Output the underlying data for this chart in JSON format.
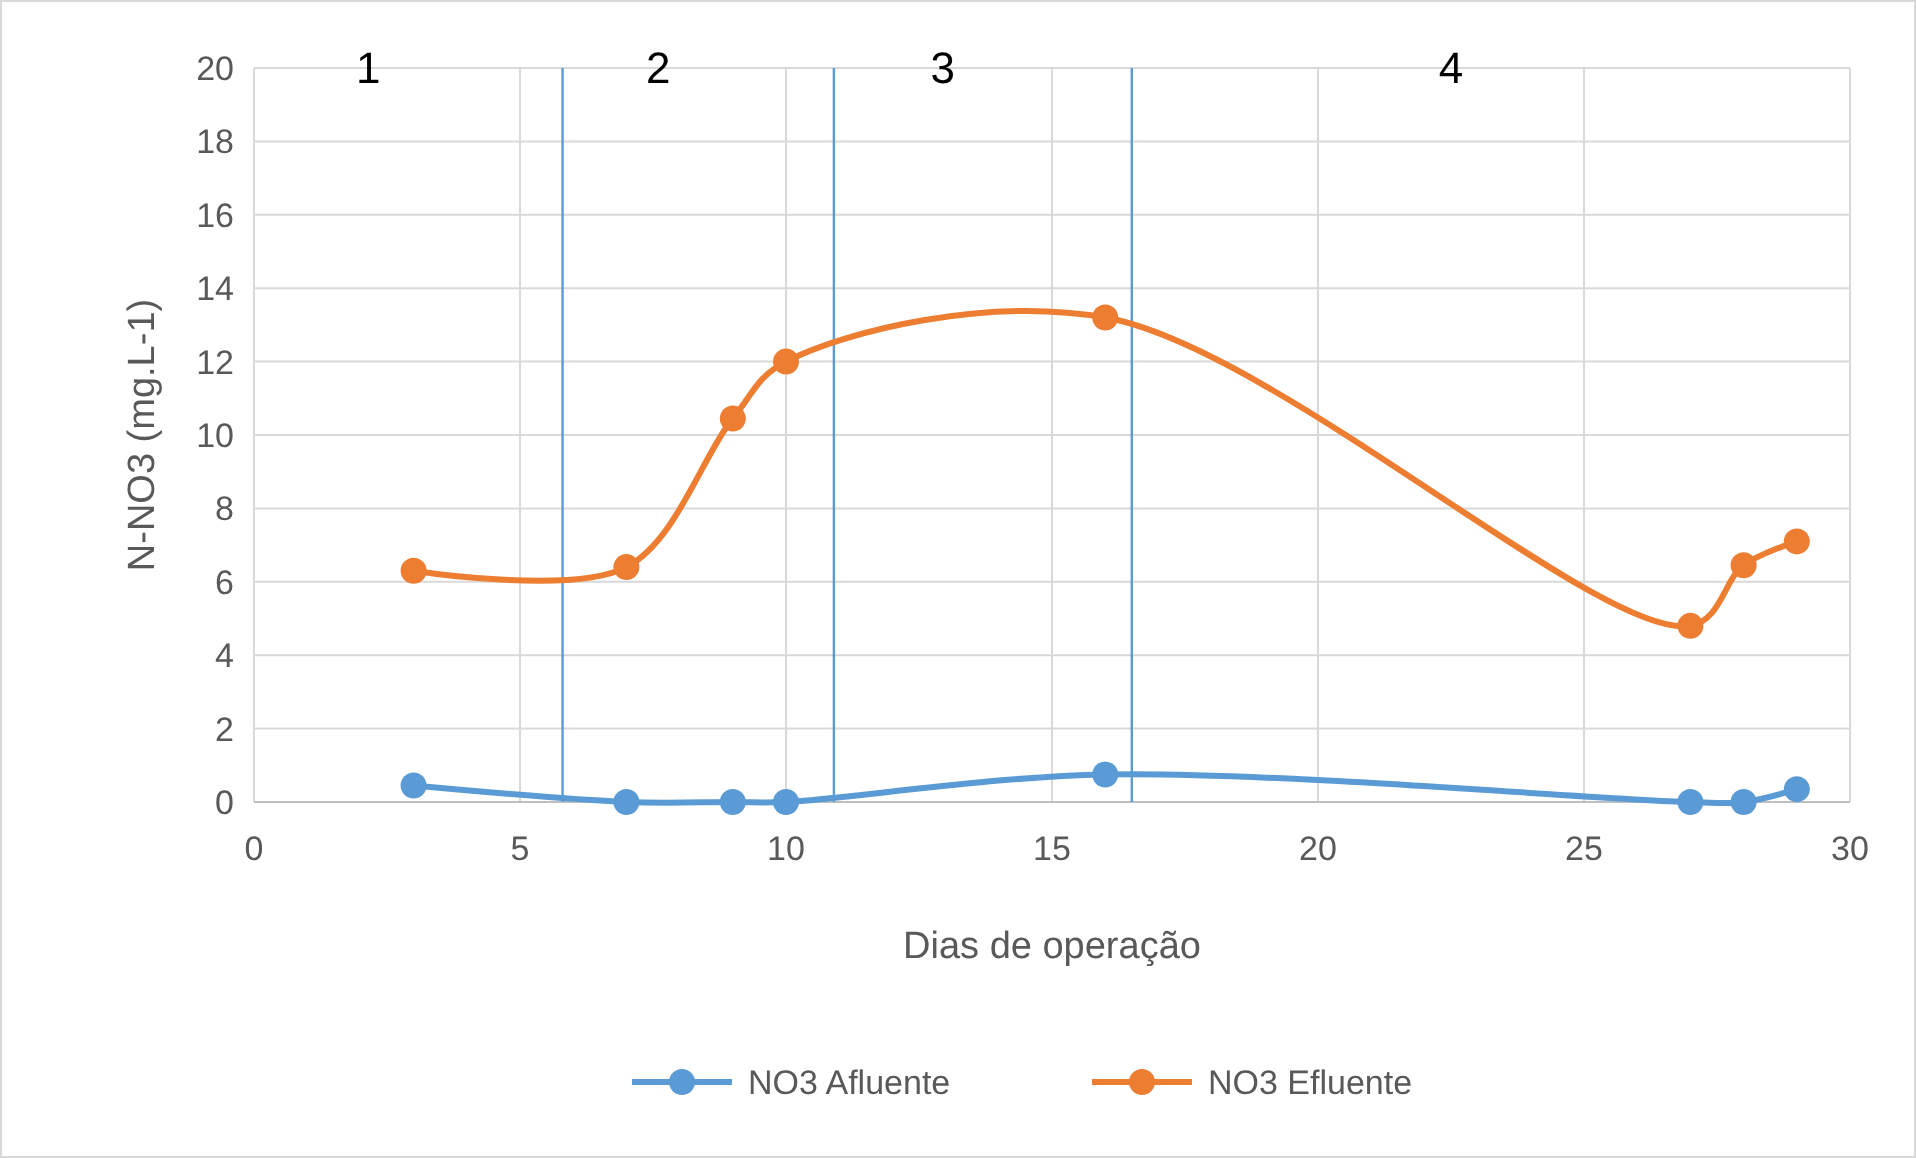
{
  "chart_data": {
    "type": "line",
    "xlabel": "Dias de operação",
    "ylabel": "N-NO3 (mg.L-1)",
    "xlim": [
      0,
      30
    ],
    "xticks": [
      0,
      5,
      10,
      15,
      20,
      25,
      30
    ],
    "ylim": [
      0,
      20
    ],
    "yticks": [
      0,
      2,
      4,
      6,
      8,
      10,
      12,
      14,
      16,
      18,
      20
    ],
    "grid": true,
    "legend": "bottom",
    "marker": "circle",
    "line_style": "solid",
    "series": [
      {
        "name": "NO3 Afluente",
        "color": "#5b9bd5",
        "x": [
          3,
          7,
          9,
          10,
          16,
          27,
          28,
          29
        ],
        "values": [
          0.45,
          0,
          0,
          0,
          0.75,
          0,
          0,
          0.35
        ]
      },
      {
        "name": "NO3 Efluente",
        "color": "#ed7d31",
        "x": [
          3,
          7,
          9,
          10,
          16,
          27,
          28,
          29
        ],
        "values": [
          6.3,
          6.4,
          10.45,
          12.0,
          13.2,
          4.8,
          6.45,
          7.1
        ]
      }
    ],
    "ref_lines": [
      {
        "axis": "x",
        "value": 5.8,
        "color": "#5b9bd5"
      },
      {
        "axis": "x",
        "value": 10.9,
        "color": "#5b9bd5"
      },
      {
        "axis": "x",
        "value": 16.5,
        "color": "#5b9bd5"
      }
    ],
    "annotations": [
      "1",
      "2",
      "3",
      "4"
    ]
  }
}
